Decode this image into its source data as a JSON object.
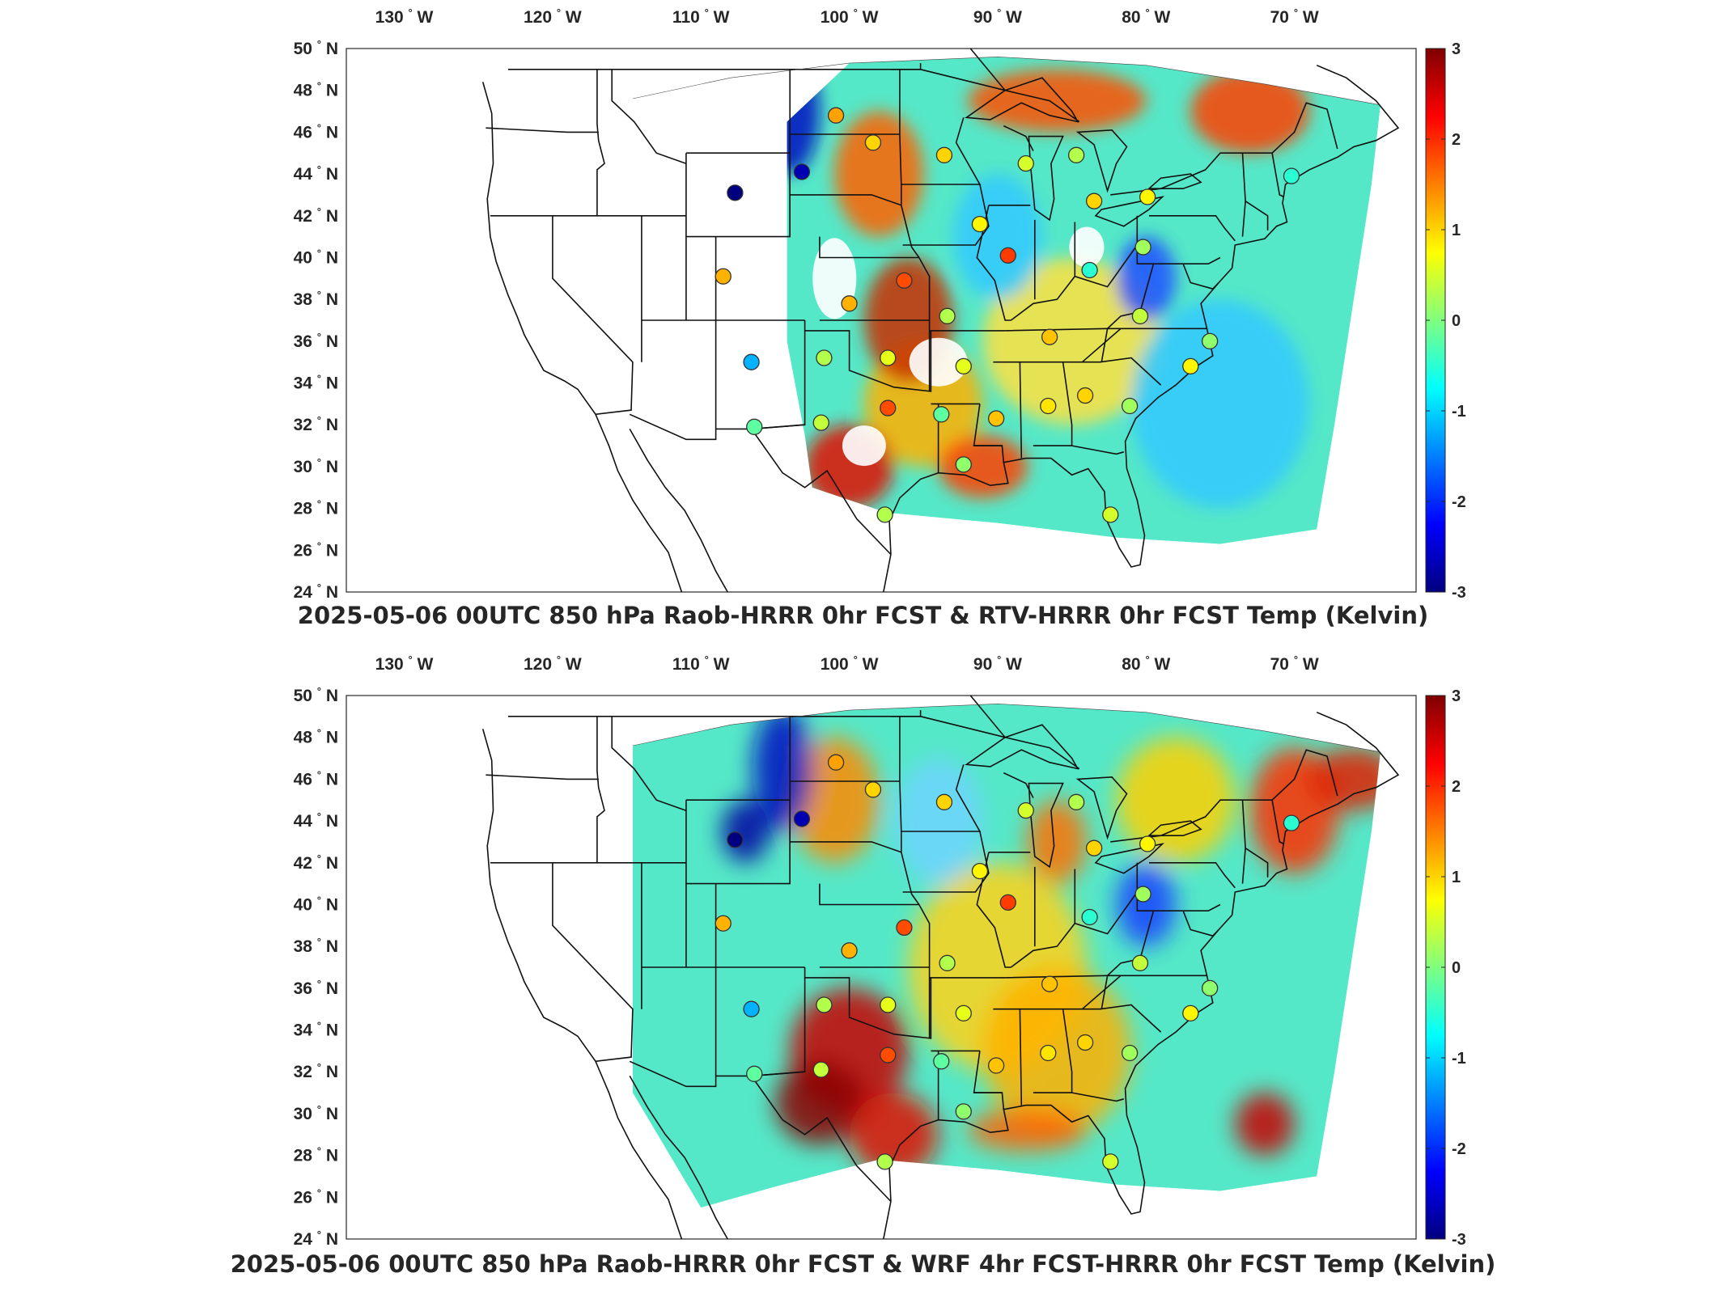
{
  "panels": [
    {
      "id": "top",
      "title": "2025-05-06 00UTC 850 hPa Raob-HRRR 0hr FCST & RTV-HRRR 0hr FCST Temp (Kelvin)",
      "coverage": "partial"
    },
    {
      "id": "bottom",
      "title": "2025-05-06 00UTC 850 hPa Raob-HRRR 0hr FCST & WRF 4hr FCST-HRRR 0hr FCST Temp (Kelvin)",
      "coverage": "full"
    }
  ],
  "lon_ticks": [
    {
      "value": -130,
      "label": "130",
      "hemi": "W"
    },
    {
      "value": -120,
      "label": "120",
      "hemi": "W"
    },
    {
      "value": -110,
      "label": "110",
      "hemi": "W"
    },
    {
      "value": -100,
      "label": "100",
      "hemi": "W"
    },
    {
      "value": -90,
      "label": "90",
      "hemi": "W"
    },
    {
      "value": -80,
      "label": "80",
      "hemi": "W"
    },
    {
      "value": -70,
      "label": "70",
      "hemi": "W"
    }
  ],
  "lat_ticks": [
    {
      "value": 50,
      "label": "50",
      "hemi": "N"
    },
    {
      "value": 48,
      "label": "48",
      "hemi": "N"
    },
    {
      "value": 46,
      "label": "46",
      "hemi": "N"
    },
    {
      "value": 44,
      "label": "44",
      "hemi": "N"
    },
    {
      "value": 42,
      "label": "42",
      "hemi": "N"
    },
    {
      "value": 40,
      "label": "40",
      "hemi": "N"
    },
    {
      "value": 38,
      "label": "38",
      "hemi": "N"
    },
    {
      "value": 36,
      "label": "36",
      "hemi": "N"
    },
    {
      "value": 34,
      "label": "34",
      "hemi": "N"
    },
    {
      "value": 32,
      "label": "32",
      "hemi": "N"
    },
    {
      "value": 30,
      "label": "30",
      "hemi": "N"
    },
    {
      "value": 28,
      "label": "28",
      "hemi": "N"
    },
    {
      "value": 26,
      "label": "26",
      "hemi": "N"
    },
    {
      "value": 24,
      "label": "24",
      "hemi": "N"
    }
  ],
  "colorbar": {
    "min": -3,
    "max": 3,
    "ticks": [
      "3",
      "2",
      "1",
      "0",
      "-1",
      "-2",
      "-3"
    ],
    "colormap": [
      "#00007f",
      "#0000ff",
      "#007fff",
      "#00ffff",
      "#7fff7f",
      "#ffff00",
      "#ff7f00",
      "#ff0000",
      "#7f0000"
    ]
  },
  "stations": [
    {
      "lon": -107.7,
      "lat": 43.1,
      "value": -3.0
    },
    {
      "lon": -103.2,
      "lat": 44.1,
      "value": -2.7
    },
    {
      "lon": -100.9,
      "lat": 46.8,
      "value": 1.3
    },
    {
      "lon": -98.4,
      "lat": 45.5,
      "value": 1.0
    },
    {
      "lon": -93.6,
      "lat": 44.9,
      "value": 1.0
    },
    {
      "lon": -88.1,
      "lat": 44.5,
      "value": 0.5
    },
    {
      "lon": -84.7,
      "lat": 44.9,
      "value": 0.3
    },
    {
      "lon": -83.5,
      "lat": 42.7,
      "value": 1.0
    },
    {
      "lon": -79.9,
      "lat": 42.9,
      "value": 0.8
    },
    {
      "lon": -70.2,
      "lat": 43.9,
      "value": -0.5
    },
    {
      "lon": -91.2,
      "lat": 41.6,
      "value": 0.8
    },
    {
      "lon": -89.3,
      "lat": 40.1,
      "value": 1.9
    },
    {
      "lon": -83.8,
      "lat": 39.4,
      "value": -0.5
    },
    {
      "lon": -80.2,
      "lat": 40.5,
      "value": 0.2
    },
    {
      "lon": -96.3,
      "lat": 38.9,
      "value": 1.8
    },
    {
      "lon": -100.0,
      "lat": 37.8,
      "value": 1.2
    },
    {
      "lon": -108.5,
      "lat": 39.1,
      "value": 1.2
    },
    {
      "lon": -93.4,
      "lat": 37.2,
      "value": 0.3
    },
    {
      "lon": -86.5,
      "lat": 36.2,
      "value": 1.1
    },
    {
      "lon": -80.4,
      "lat": 37.2,
      "value": 0.4
    },
    {
      "lon": -75.7,
      "lat": 36.0,
      "value": 0.1
    },
    {
      "lon": -106.6,
      "lat": 35.0,
      "value": -1.2
    },
    {
      "lon": -101.7,
      "lat": 35.2,
      "value": 0.3
    },
    {
      "lon": -97.4,
      "lat": 35.2,
      "value": 0.6
    },
    {
      "lon": -92.3,
      "lat": 34.8,
      "value": 0.6
    },
    {
      "lon": -77.0,
      "lat": 34.8,
      "value": 0.8
    },
    {
      "lon": -97.4,
      "lat": 32.8,
      "value": 1.8
    },
    {
      "lon": -101.9,
      "lat": 32.1,
      "value": 0.4
    },
    {
      "lon": -106.4,
      "lat": 31.9,
      "value": -0.2
    },
    {
      "lon": -93.8,
      "lat": 32.5,
      "value": -0.2
    },
    {
      "lon": -90.1,
      "lat": 32.3,
      "value": 1.1
    },
    {
      "lon": -86.6,
      "lat": 32.9,
      "value": 0.9
    },
    {
      "lon": -84.1,
      "lat": 33.4,
      "value": 1.0
    },
    {
      "lon": -81.1,
      "lat": 32.9,
      "value": 0.2
    },
    {
      "lon": -92.3,
      "lat": 30.1,
      "value": 0.1
    },
    {
      "lon": -97.6,
      "lat": 27.7,
      "value": 0.3
    },
    {
      "lon": -82.4,
      "lat": 27.7,
      "value": 0.5
    }
  ]
}
